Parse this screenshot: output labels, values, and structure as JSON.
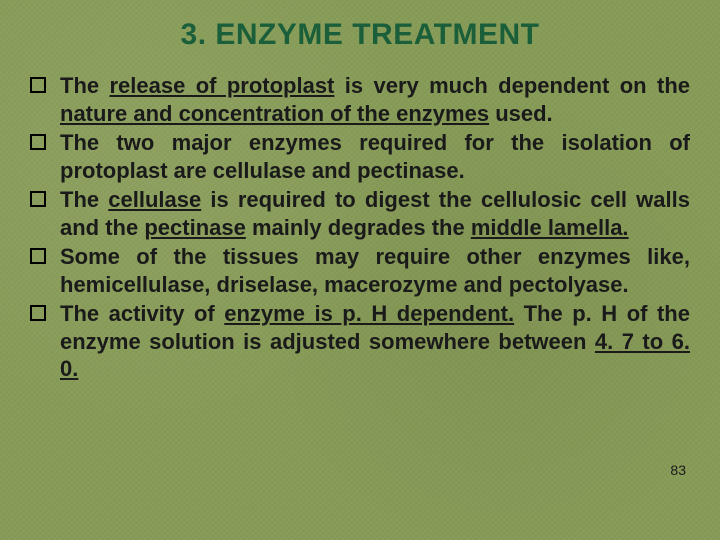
{
  "slide": {
    "title": "3. ENZYME TREATMENT",
    "title_color": "#1a5e3a",
    "title_fontsize": 30,
    "body_fontsize": 22,
    "background_color": "#8a9e5a",
    "text_color": "#1a1a1a",
    "bullet_border_color": "#000000",
    "page_number": "83",
    "page_number_fontsize": 14,
    "bullets": [
      {
        "segments": [
          {
            "text": "The ",
            "u": false
          },
          {
            "text": "release of protoplast",
            "u": true
          },
          {
            "text": " is very much dependent on the ",
            "u": false
          },
          {
            "text": "nature and concentration of the enzymes",
            "u": true
          },
          {
            "text": " used.",
            "u": false
          }
        ]
      },
      {
        "segments": [
          {
            "text": "The two major enzymes required for the isolation of protoplast are cellulase and pectinase.",
            "u": false
          }
        ]
      },
      {
        "segments": [
          {
            "text": "The ",
            "u": false
          },
          {
            "text": "cellulase",
            "u": true
          },
          {
            "text": " is required to digest the cellulosic cell walls and the ",
            "u": false
          },
          {
            "text": "pectinase",
            "u": true
          },
          {
            "text": " mainly degrades the ",
            "u": false
          },
          {
            "text": "middle lamella.",
            "u": true
          }
        ]
      },
      {
        "segments": [
          {
            "text": "Some of the tissues may require other enzymes like, hemicellulase, driselase, macerozyme and pectolyase.",
            "u": false
          }
        ]
      },
      {
        "segments": [
          {
            "text": "The activity of ",
            "u": false
          },
          {
            "text": "enzyme is p. H dependent.",
            "u": true
          },
          {
            "text": " The p. H of the enzyme solution is adjusted somewhere between ",
            "u": false
          },
          {
            "text": "4. 7 to 6. 0.",
            "u": true
          }
        ]
      }
    ]
  }
}
